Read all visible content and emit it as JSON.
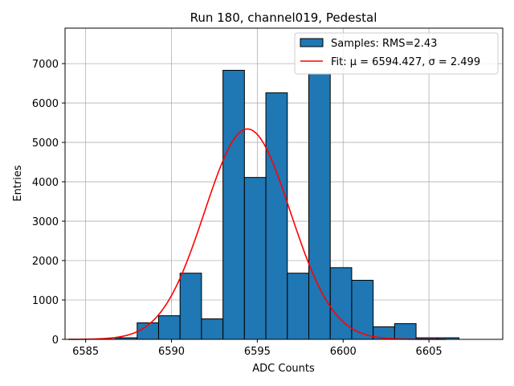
{
  "chart_data": {
    "type": "bar",
    "title": "Run 180, channel019, Pedestal",
    "xlabel": "ADC Counts",
    "ylabel": "Entries",
    "xlim": [
      6583.8,
      6609.3
    ],
    "ylim": [
      0,
      7900
    ],
    "xticks": [
      6585,
      6590,
      6595,
      6600,
      6605
    ],
    "yticks": [
      0,
      1000,
      2000,
      3000,
      4000,
      5000,
      6000,
      7000
    ],
    "grid": true,
    "legend_position": "top-right",
    "bin_width": 1.25,
    "histogram": {
      "name": "Samples: RMS=2.43",
      "color": "#1f77b4",
      "bins": [
        {
          "x0": 6585.5,
          "count": 5
        },
        {
          "x0": 6586.75,
          "count": 40
        },
        {
          "x0": 6588.0,
          "count": 420
        },
        {
          "x0": 6589.25,
          "count": 600
        },
        {
          "x0": 6590.5,
          "count": 1680
        },
        {
          "x0": 6591.75,
          "count": 520
        },
        {
          "x0": 6593.0,
          "count": 6830
        },
        {
          "x0": 6594.25,
          "count": 4110
        },
        {
          "x0": 6595.5,
          "count": 6260
        },
        {
          "x0": 6596.75,
          "count": 1680
        },
        {
          "x0": 6598.0,
          "count": 6740
        },
        {
          "x0": 6599.25,
          "count": 1820
        },
        {
          "x0": 6600.5,
          "count": 1500
        },
        {
          "x0": 6601.75,
          "count": 320
        },
        {
          "x0": 6603.0,
          "count": 400
        },
        {
          "x0": 6604.25,
          "count": 40
        },
        {
          "x0": 6605.5,
          "count": 40
        }
      ]
    },
    "fit": {
      "label": "Fit: μ = 6594.427, σ = 2.499",
      "color": "#ff0000",
      "mu": 6594.427,
      "sigma": 2.499,
      "amplitude": 5340,
      "x_range": [
        6584.0,
        6606.0
      ]
    }
  }
}
